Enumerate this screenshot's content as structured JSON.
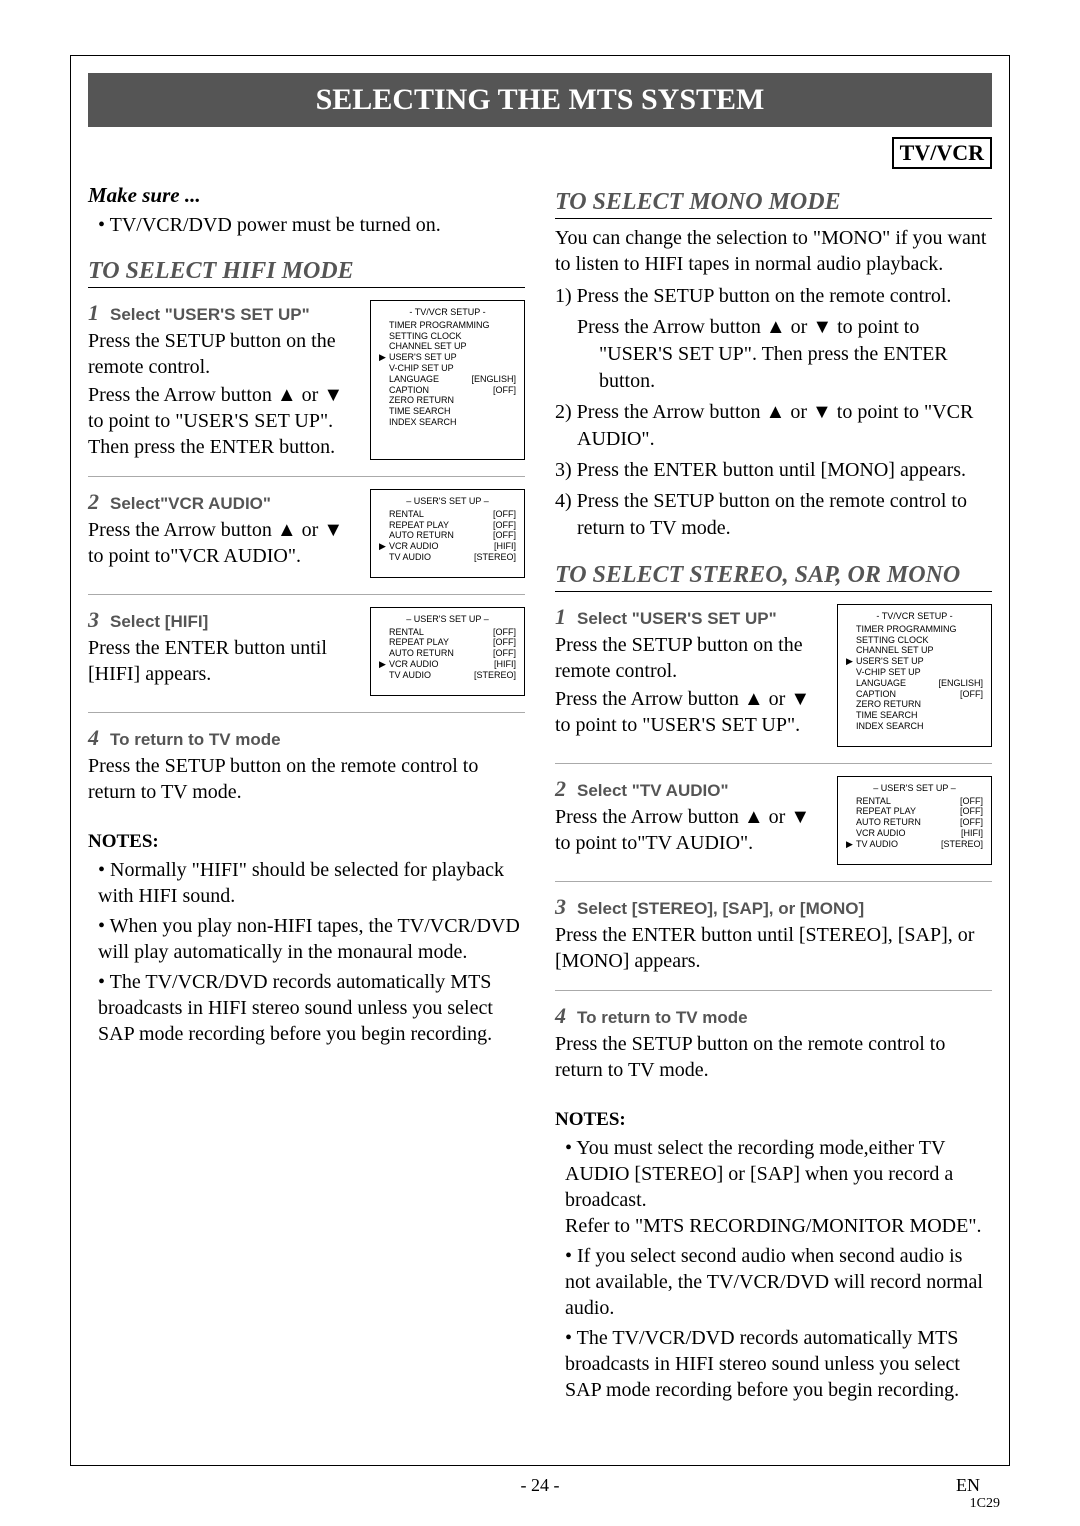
{
  "title": "SELECTING THE MTS SYSTEM",
  "badge": "TV/VCR",
  "makesure_label": "Make sure ...",
  "makesure_items": [
    "TV/VCR/DVD power must be turned on."
  ],
  "hifi": {
    "title": "TO SELECT HIFI MODE",
    "step1_label": "Select \"USER'S SET UP\"",
    "step1_body1": "Press the SETUP button on the remote control.",
    "step1_body2": "Press the Arrow button ▲ or ▼ to point to \"USER'S SET UP\". Then press the ENTER button.",
    "step2_label": "Select\"VCR AUDIO\"",
    "step2_body": "Press the Arrow button ▲ or ▼ to point to\"VCR AUDIO\".",
    "step3_label": "Select [HIFI]",
    "step3_body": "Press the ENTER button until [HIFI] appears.",
    "step4_label": "To return to TV mode",
    "step4_body": "Press the SETUP button on the remote control to return to TV mode."
  },
  "hifi_notes": [
    "Normally \"HIFI\" should be selected for playback with HIFI sound.",
    "When you play non-HIFI tapes, the TV/VCR/DVD will play automatically in the monaural mode.",
    "The TV/VCR/DVD records automatically MTS broadcasts in HIFI stereo sound unless you select SAP mode recording before you begin recording."
  ],
  "mono": {
    "title": "TO SELECT MONO MODE",
    "intro": "You can change the selection to \"MONO\" if you want to listen to HIFI tapes in normal audio playback.",
    "items": [
      "1) Press the SETUP button on the remote control.",
      "Press the Arrow button ▲ or ▼ to point to \"USER'S SET UP\". Then press the ENTER button.",
      "2) Press the Arrow button ▲ or ▼ to point to \"VCR AUDIO\".",
      "3) Press the ENTER button until [MONO] appears.",
      "4) Press the SETUP button on the remote control to return to TV mode."
    ]
  },
  "stereo": {
    "title": "TO SELECT STEREO, SAP, OR MONO",
    "step1_label": "Select \"USER'S SET UP\"",
    "step1_body1": "Press the SETUP button on the remote control.",
    "step1_body2": "Press the Arrow button ▲ or ▼ to point to \"USER'S SET UP\".",
    "step2_label": "Select \"TV AUDIO\"",
    "step2_body": "Press the Arrow button ▲ or ▼ to point to\"TV AUDIO\".",
    "step3_label": "Select [STEREO], [SAP], or [MONO]",
    "step3_body": "Press the ENTER button until [STEREO], [SAP], or [MONO] appears.",
    "step4_label": "To return to TV mode",
    "step4_body": "Press the SETUP button on the remote control to return to TV mode."
  },
  "stereo_notes": [
    "You must select the recording mode,either TV AUDIO [STEREO] or [SAP] when you record a broadcast.\nRefer to \"MTS RECORDING/MONITOR MODE\".",
    "If you select second audio when second audio is not available, the TV/VCR/DVD will record normal audio.",
    "The TV/VCR/DVD records automatically MTS broadcasts in HIFI stereo sound unless you select SAP mode recording before you begin recording."
  ],
  "osd_main": {
    "title": "- TV/VCR SETUP -",
    "rows": [
      {
        "ptr": "",
        "lbl": "TIMER PROGRAMMING",
        "val": ""
      },
      {
        "ptr": "",
        "lbl": "SETTING CLOCK",
        "val": ""
      },
      {
        "ptr": "",
        "lbl": "CHANNEL SET UP",
        "val": ""
      },
      {
        "ptr": "▶",
        "lbl": "USER'S SET UP",
        "val": ""
      },
      {
        "ptr": "",
        "lbl": "V-CHIP SET UP",
        "val": ""
      },
      {
        "ptr": "",
        "lbl": "LANGUAGE",
        "val": "[ENGLISH]"
      },
      {
        "ptr": "",
        "lbl": "CAPTION",
        "val": "[OFF]"
      },
      {
        "ptr": "",
        "lbl": "ZERO RETURN",
        "val": ""
      },
      {
        "ptr": "",
        "lbl": "TIME SEARCH",
        "val": ""
      },
      {
        "ptr": "",
        "lbl": "INDEX SEARCH",
        "val": ""
      }
    ]
  },
  "osd_user_vcr": {
    "title": "– USER'S SET UP –",
    "rows": [
      {
        "ptr": "",
        "lbl": "RENTAL",
        "val": "[OFF]"
      },
      {
        "ptr": "",
        "lbl": "REPEAT PLAY",
        "val": "[OFF]"
      },
      {
        "ptr": "",
        "lbl": "AUTO RETURN",
        "val": "[OFF]"
      },
      {
        "ptr": "▶",
        "lbl": "VCR AUDIO",
        "val": "[HIFI]"
      },
      {
        "ptr": "",
        "lbl": "TV AUDIO",
        "val": "[STEREO]"
      }
    ]
  },
  "osd_user_tv": {
    "title": "– USER'S SET UP –",
    "rows": [
      {
        "ptr": "",
        "lbl": "RENTAL",
        "val": "[OFF]"
      },
      {
        "ptr": "",
        "lbl": "REPEAT PLAY",
        "val": "[OFF]"
      },
      {
        "ptr": "",
        "lbl": "AUTO RETURN",
        "val": "[OFF]"
      },
      {
        "ptr": "",
        "lbl": "VCR AUDIO",
        "val": "[HIFI]"
      },
      {
        "ptr": "▶",
        "lbl": "TV AUDIO",
        "val": "[STEREO]"
      }
    ]
  },
  "page_num": "- 24 -",
  "lang": "EN",
  "code": "1C29",
  "notes_label": "NOTES:",
  "colors": {
    "accent": "#555555"
  }
}
